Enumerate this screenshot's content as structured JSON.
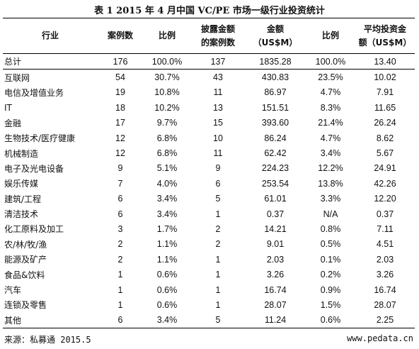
{
  "title": "表 1  2015 年 4 月中国 VC/PE 市场一级行业投资统计",
  "headers": {
    "industry": "行业",
    "cases": "案例数",
    "ratio1": "比例",
    "disclosed_l1": "披露金额",
    "disclosed_l2": "的案例数",
    "amount_l1": "金额",
    "amount_l2": "（US$M）",
    "ratio2": "比例",
    "avg_l1": "平均投资金",
    "avg_l2": "额（US$M）"
  },
  "rows": [
    {
      "industry": "总计",
      "cases": "176",
      "ratio1": "100.0%",
      "disclosed": "137",
      "amount": "1835.28",
      "ratio2": "100.0%",
      "avg": "13.40"
    },
    {
      "industry": "互联网",
      "cases": "54",
      "ratio1": "30.7%",
      "disclosed": "43",
      "amount": "430.83",
      "ratio2": "23.5%",
      "avg": "10.02"
    },
    {
      "industry": "电信及增值业务",
      "cases": "19",
      "ratio1": "10.8%",
      "disclosed": "11",
      "amount": "86.97",
      "ratio2": "4.7%",
      "avg": "7.91"
    },
    {
      "industry": "IT",
      "cases": "18",
      "ratio1": "10.2%",
      "disclosed": "13",
      "amount": "151.51",
      "ratio2": "8.3%",
      "avg": "11.65"
    },
    {
      "industry": "金融",
      "cases": "17",
      "ratio1": "9.7%",
      "disclosed": "15",
      "amount": "393.60",
      "ratio2": "21.4%",
      "avg": "26.24"
    },
    {
      "industry": "生物技术/医疗健康",
      "cases": "12",
      "ratio1": "6.8%",
      "disclosed": "10",
      "amount": "86.24",
      "ratio2": "4.7%",
      "avg": "8.62"
    },
    {
      "industry": "机械制造",
      "cases": "12",
      "ratio1": "6.8%",
      "disclosed": "11",
      "amount": "62.42",
      "ratio2": "3.4%",
      "avg": "5.67"
    },
    {
      "industry": "电子及光电设备",
      "cases": "9",
      "ratio1": "5.1%",
      "disclosed": "9",
      "amount": "224.23",
      "ratio2": "12.2%",
      "avg": "24.91"
    },
    {
      "industry": "娱乐传媒",
      "cases": "7",
      "ratio1": "4.0%",
      "disclosed": "6",
      "amount": "253.54",
      "ratio2": "13.8%",
      "avg": "42.26"
    },
    {
      "industry": "建筑/工程",
      "cases": "6",
      "ratio1": "3.4%",
      "disclosed": "5",
      "amount": "61.01",
      "ratio2": "3.3%",
      "avg": "12.20"
    },
    {
      "industry": "清洁技术",
      "cases": "6",
      "ratio1": "3.4%",
      "disclosed": "1",
      "amount": "0.37",
      "ratio2": "N/A",
      "avg": "0.37"
    },
    {
      "industry": "化工原料及加工",
      "cases": "3",
      "ratio1": "1.7%",
      "disclosed": "2",
      "amount": "14.21",
      "ratio2": "0.8%",
      "avg": "7.11"
    },
    {
      "industry": "农/林/牧/渔",
      "cases": "2",
      "ratio1": "1.1%",
      "disclosed": "2",
      "amount": "9.01",
      "ratio2": "0.5%",
      "avg": "4.51"
    },
    {
      "industry": "能源及矿产",
      "cases": "2",
      "ratio1": "1.1%",
      "disclosed": "1",
      "amount": "2.03",
      "ratio2": "0.1%",
      "avg": "2.03"
    },
    {
      "industry": "食品&饮料",
      "cases": "1",
      "ratio1": "0.6%",
      "disclosed": "1",
      "amount": "3.26",
      "ratio2": "0.2%",
      "avg": "3.26"
    },
    {
      "industry": "汽车",
      "cases": "1",
      "ratio1": "0.6%",
      "disclosed": "1",
      "amount": "16.74",
      "ratio2": "0.9%",
      "avg": "16.74"
    },
    {
      "industry": "连锁及零售",
      "cases": "1",
      "ratio1": "0.6%",
      "disclosed": "1",
      "amount": "28.07",
      "ratio2": "1.5%",
      "avg": "28.07"
    },
    {
      "industry": "其他",
      "cases": "6",
      "ratio1": "3.4%",
      "disclosed": "5",
      "amount": "11.24",
      "ratio2": "0.6%",
      "avg": "2.25"
    }
  ],
  "footer": {
    "source": "来源：私募通  2015.5",
    "website": "www.pedata.cn"
  }
}
